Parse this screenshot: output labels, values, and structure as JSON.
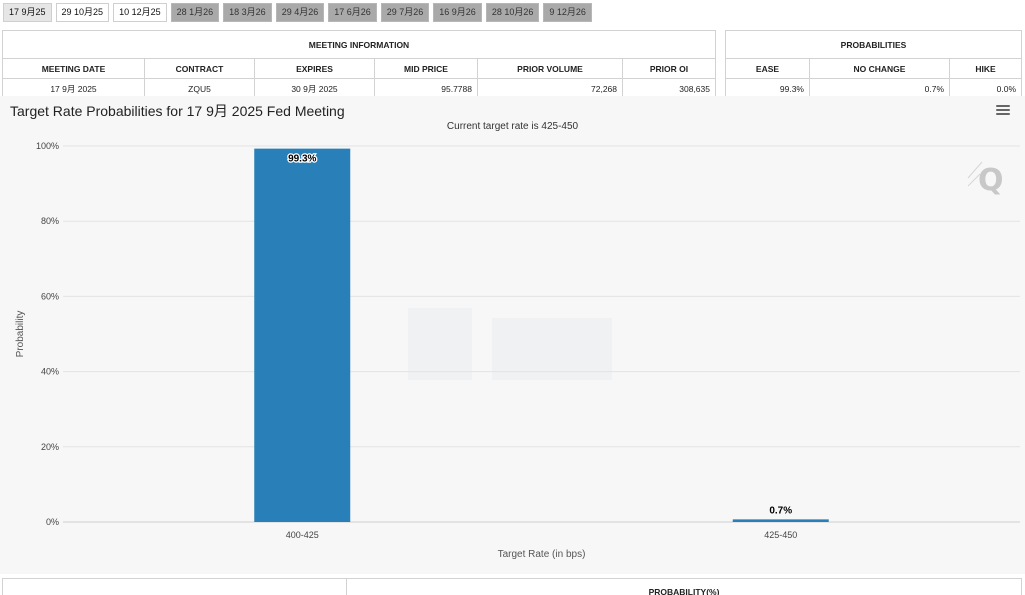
{
  "tabs": [
    {
      "label": "17 9月25",
      "state": "active"
    },
    {
      "label": "29 10月25",
      "state": "plain"
    },
    {
      "label": "10 12月25",
      "state": "plain"
    },
    {
      "label": "28 1月26",
      "state": "grey"
    },
    {
      "label": "18 3月26",
      "state": "grey"
    },
    {
      "label": "29 4月26",
      "state": "grey"
    },
    {
      "label": "17 6月26",
      "state": "grey"
    },
    {
      "label": "29 7月26",
      "state": "grey"
    },
    {
      "label": "16 9月26",
      "state": "grey"
    },
    {
      "label": "28 10月26",
      "state": "grey"
    },
    {
      "label": "9 12月26",
      "state": "grey"
    }
  ],
  "meeting_info": {
    "group_title": "MEETING INFORMATION",
    "headers": [
      "MEETING DATE",
      "CONTRACT",
      "EXPIRES",
      "MID PRICE",
      "PRIOR VOLUME",
      "PRIOR OI"
    ],
    "row": [
      "17 9月 2025",
      "ZQU5",
      "30 9月 2025",
      "95.7788",
      "72,268",
      "308,635"
    ]
  },
  "probabilities": {
    "group_title": "PROBABILITIES",
    "headers": [
      "EASE",
      "NO CHANGE",
      "HIKE"
    ],
    "row": [
      "99.3%",
      "0.7%",
      "0.0%"
    ]
  },
  "bottom_table": {
    "right_header": "PROBABILITY(%)"
  },
  "icons": {
    "menu": "hamburger-menu-icon",
    "watermark": "q-logo-icon"
  },
  "colors": {
    "bar": "#2980b9",
    "grid": "#e6e6e6",
    "panel": "#f7f7f7"
  },
  "chart_data": {
    "type": "bar",
    "title": "Target Rate Probabilities for 17 9月 2025 Fed Meeting",
    "subtitle": "Current target rate is 425-450",
    "xlabel": "Target Rate (in bps)",
    "ylabel": "Probability",
    "categories": [
      "400-425",
      "425-450"
    ],
    "values": [
      99.3,
      0.7
    ],
    "data_labels": [
      "99.3%",
      "0.7%"
    ],
    "ylim": [
      0,
      100
    ],
    "yticks": [
      "0%",
      "20%",
      "40%",
      "60%",
      "80%",
      "100%"
    ],
    "grid": true,
    "legend": "none"
  }
}
